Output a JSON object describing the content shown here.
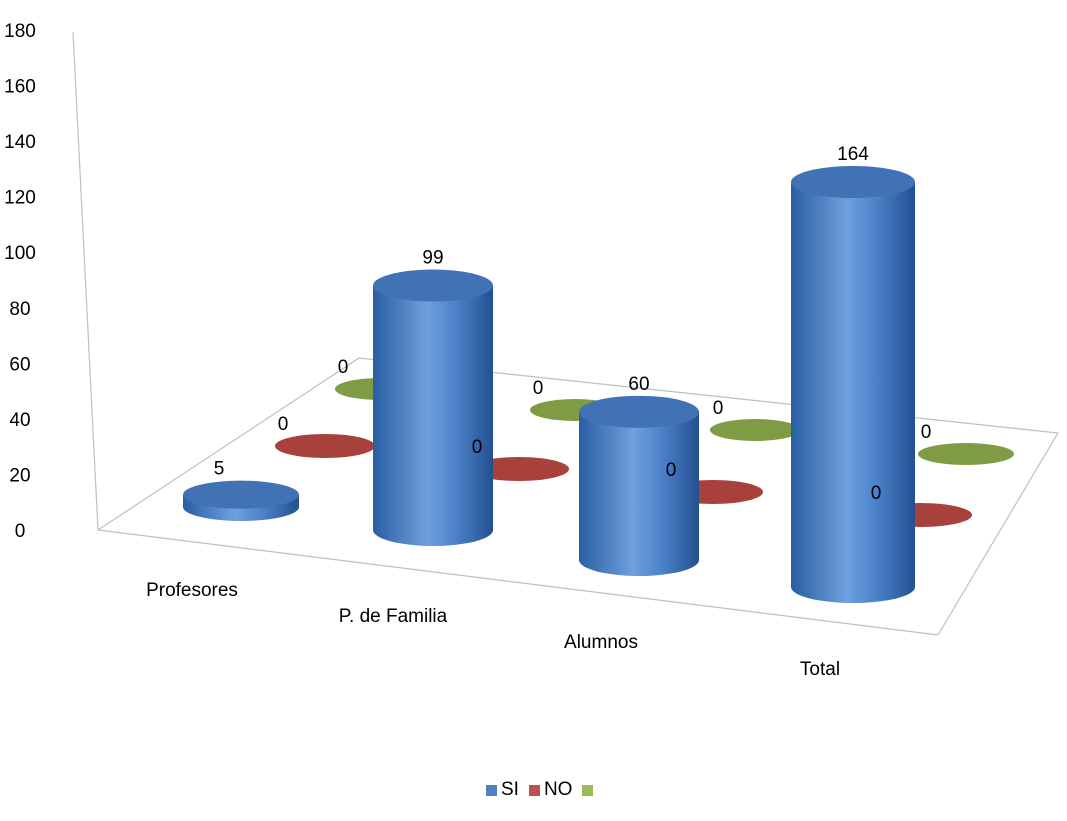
{
  "chart_data": {
    "type": "bar",
    "style": "3d-cylinder",
    "categories": [
      "Profesores",
      "P. de Familia",
      "Alumnos",
      "Total"
    ],
    "series": [
      {
        "name": "SI",
        "values": [
          5,
          99,
          60,
          164
        ],
        "color": "#4F81BD"
      },
      {
        "name": "NO",
        "values": [
          0,
          0,
          0,
          0
        ],
        "color": "#C0504D"
      },
      {
        "name": "",
        "values": [
          0,
          0,
          0,
          0
        ],
        "color": "#9BBB59"
      }
    ],
    "y_ticks": [
      "0",
      "20",
      "40",
      "60",
      "80",
      "100",
      "120",
      "140",
      "160",
      "180"
    ],
    "ylim": [
      0,
      180
    ],
    "legend_position": "bottom",
    "data_labels": true
  }
}
